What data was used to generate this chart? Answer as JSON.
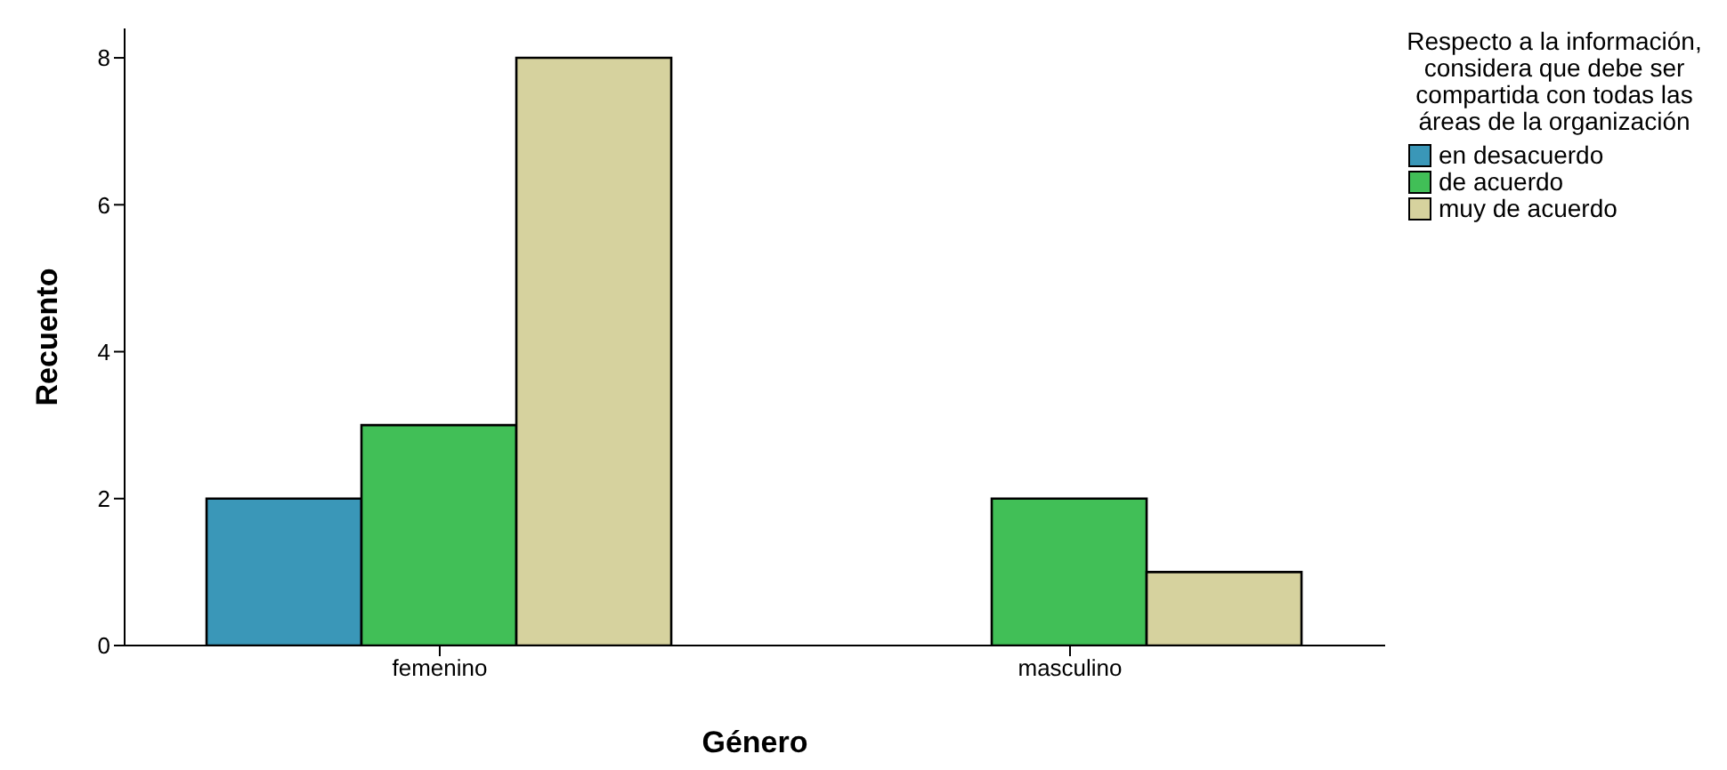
{
  "chart_data": {
    "type": "bar",
    "xlabel": "Género",
    "ylabel": "Recuento",
    "legend_title": "Respecto a la información, considera que debe ser compartida con todas las áreas de la organización",
    "categories": [
      "femenino",
      "masculino"
    ],
    "series": [
      {
        "name": "en desacuerdo",
        "color": "#3a97b8",
        "values": [
          2,
          null
        ]
      },
      {
        "name": "de acuerdo",
        "color": "#41bf57",
        "values": [
          3,
          2
        ]
      },
      {
        "name": "muy de acuerdo",
        "color": "#d6d29e",
        "values": [
          8,
          1
        ]
      }
    ],
    "ylim": [
      0,
      8.4
    ],
    "yticks": [
      0,
      2,
      4,
      6,
      8
    ],
    "grid": false,
    "legend": "right"
  }
}
